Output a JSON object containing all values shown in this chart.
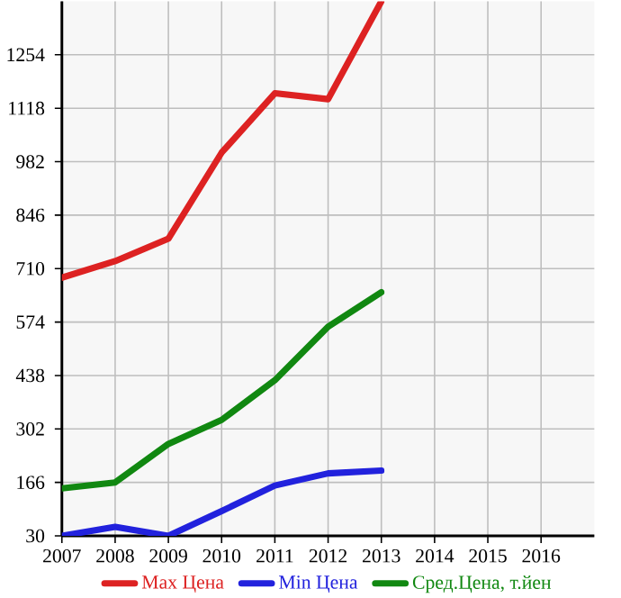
{
  "chart_data": {
    "type": "line",
    "categories": [
      "2007",
      "2008",
      "2009",
      "2010",
      "2011",
      "2012",
      "2013",
      "2014",
      "2015",
      "2016"
    ],
    "series": [
      {
        "name": "Max Цена",
        "color": "#dd2222",
        "values": [
          687,
          729,
          786,
          1005,
          1156,
          1141,
          1390,
          null,
          null,
          null
        ]
      },
      {
        "name": "Min Цена",
        "color": "#2222dd",
        "values": [
          30,
          53,
          30,
          93,
          158,
          189,
          196,
          null,
          null,
          null
        ]
      },
      {
        "name": "Сред.Цена, т.йен",
        "color": "#118811",
        "values": [
          151,
          166,
          264,
          325,
          426,
          562,
          650,
          null,
          null,
          null
        ]
      }
    ],
    "ylim": [
      30,
      1390
    ],
    "yticks": [
      30,
      166,
      302,
      438,
      574,
      710,
      846,
      982,
      1118,
      1254
    ],
    "grid": true,
    "legend": "bottom",
    "marker": "none",
    "line_style": "solid"
  }
}
